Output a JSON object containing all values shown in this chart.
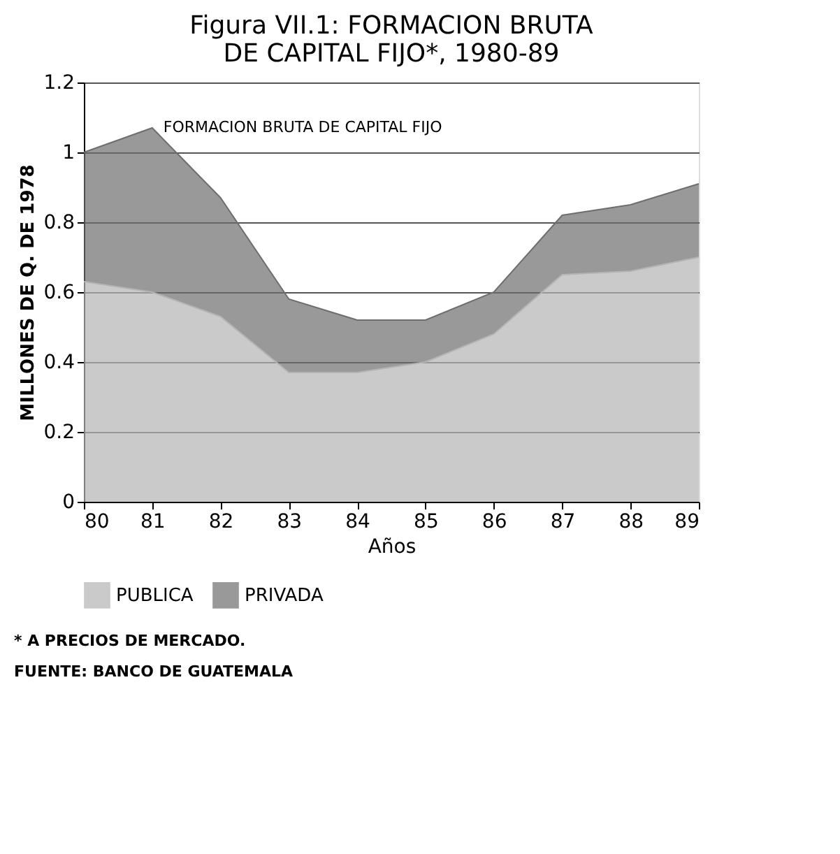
{
  "chart_data": {
    "type": "area",
    "title": [
      "Figura VII.1: FORMACION BRUTA",
      "DE CAPITAL FIJO*, 1980-89"
    ],
    "xlabel": "Años",
    "ylabel": "MILLONES DE Q. DE 1978",
    "categories": [
      "80",
      "81",
      "82",
      "83",
      "84",
      "85",
      "86",
      "87",
      "88",
      "89"
    ],
    "stacked": true,
    "series": [
      {
        "name": "PUBLICA",
        "color": "#b4b4b4",
        "values": [
          0.63,
          0.6,
          0.53,
          0.37,
          0.37,
          0.4,
          0.48,
          0.65,
          0.66,
          0.7
        ]
      },
      {
        "name": "PRIVADA",
        "color": "#6e6e6e",
        "values": [
          0.37,
          0.47,
          0.34,
          0.21,
          0.15,
          0.12,
          0.12,
          0.17,
          0.19,
          0.21
        ]
      }
    ],
    "ylim": [
      0,
      1.2
    ],
    "yticks": [
      0,
      0.2,
      0.4,
      0.6,
      0.8,
      1,
      1.2
    ],
    "grid": "y",
    "legend": "bottom",
    "annotations": [
      {
        "text": "FORMACION BRUTA DE CAPITAL FIJO",
        "x": "81",
        "y": 1.07
      },
      "* A PRECIOS DE MERCADO.",
      "FUENTE: BANCO DE GUATEMALA"
    ]
  }
}
